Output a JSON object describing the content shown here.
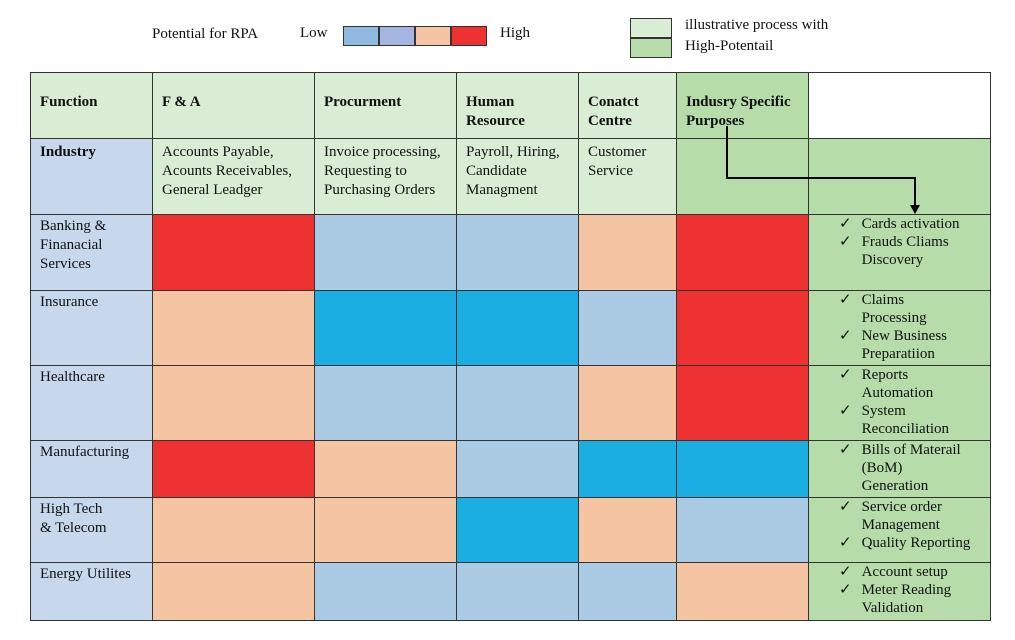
{
  "legend": {
    "title": "Potential for RPA",
    "low": "Low",
    "high": "High",
    "scale_colors": [
      "#8fbbe0",
      "#a4b6e0",
      "#f5c4a2",
      "#ee3131"
    ],
    "note": [
      "illustrative process with",
      "High-Potentail"
    ],
    "note_colors": [
      "#d9ecd4",
      "#b6dcaa"
    ]
  },
  "check_mark": "✓",
  "table": {
    "header": [
      [
        "Function"
      ],
      [
        "F  & A"
      ],
      [
        "Procurment"
      ],
      [
        "Human",
        "Resource"
      ],
      [
        "Conatct",
        "Centre"
      ],
      [
        "Indusry Specific",
        "Purposes"
      ]
    ],
    "header_colors": [
      "#d9ecd4",
      "#d9ecd4",
      "#d9ecd4",
      "#d9ecd4",
      "#d9ecd4",
      "#b6dcaa",
      "#ffffff"
    ],
    "industry_label": "Industry",
    "industry_cells": [
      [
        "Accounts Payable,",
        "Acounts Receivables,",
        "General Leadger"
      ],
      [
        "Invoice processing,",
        "Requesting to",
        "Purchasing Orders"
      ],
      [
        "Payroll, Hiring,",
        "Candidate",
        "Managment"
      ],
      [
        "Customer",
        "Service"
      ]
    ],
    "industry_colors": [
      "#c7d8ed",
      "#d9ecd4",
      "#d9ecd4",
      "#d9ecd4",
      "#d9ecd4",
      "#b6dcaa",
      "#b6dcaa"
    ],
    "label_color": "#c7d8ed",
    "process_color": "#b6dcaa",
    "rows": [
      {
        "label": [
          "Banking &",
          "Finanacial",
          "Services"
        ],
        "colors": [
          "#ee3131",
          "#abcae4",
          "#abcae4",
          "#f5c4a2",
          "#ee3131"
        ],
        "processes": [
          [
            "Cards activation"
          ],
          [
            "Frauds Cliams",
            "Discovery"
          ]
        ]
      },
      {
        "label": [
          "Insurance"
        ],
        "colors": [
          "#f5c4a2",
          "#1aaee3",
          "#1aaee3",
          "#abcae4",
          "#ee3131"
        ],
        "processes": [
          [
            "Claims",
            "Processing"
          ],
          [
            "New Business",
            "Preparatiion"
          ]
        ]
      },
      {
        "label": [
          "Healthcare"
        ],
        "colors": [
          "#f5c4a2",
          "#abcae4",
          "#abcae4",
          "#f5c4a2",
          "#ee3131"
        ],
        "processes": [
          [
            "Reports",
            "Automation"
          ],
          [
            "System",
            "Reconciliation"
          ]
        ]
      },
      {
        "label": [
          "Manufacturing"
        ],
        "colors": [
          "#ee3131",
          "#f5c4a2",
          "#abcae4",
          "#1aaee3",
          "#1aaee3"
        ],
        "processes": [
          [
            "Bills of Materail",
            "(BoM)",
            "Generation"
          ]
        ]
      },
      {
        "label": [
          "High Tech",
          "& Telecom"
        ],
        "colors": [
          "#f5c4a2",
          "#f5c4a2",
          "#1aaee3",
          "#f5c4a2",
          "#abcae4"
        ],
        "processes": [
          [
            "Service order",
            "Management"
          ],
          [
            "Quality Reporting"
          ]
        ]
      },
      {
        "label": [
          "Energy Utilites"
        ],
        "colors": [
          "#f5c4a2",
          "#abcae4",
          "#abcae4",
          "#abcae4",
          "#f5c4a2"
        ],
        "processes": [
          [
            "Account setup"
          ],
          [
            "Meter Reading",
            "Validation"
          ]
        ]
      }
    ]
  }
}
